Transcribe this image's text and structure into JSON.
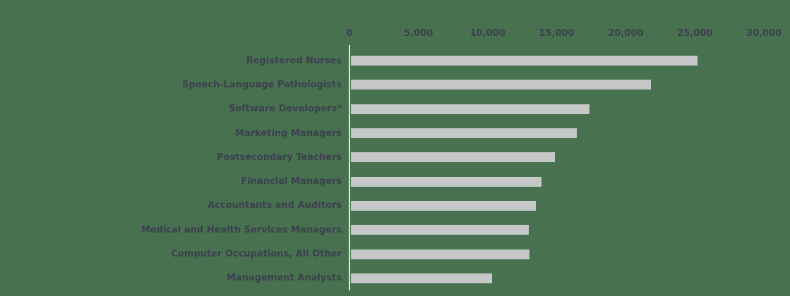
{
  "chart_data": {
    "type": "bar",
    "orientation": "horizontal",
    "title": "",
    "xlabel": "",
    "ylabel": "",
    "grid": false,
    "legend": false,
    "xlim": [
      0,
      30000
    ],
    "x_tick_labels": [
      "0",
      "5,000",
      "10,000",
      "15,000",
      "20,000",
      "25,000",
      "30,000"
    ],
    "categories": [
      "Registered Nurses",
      "Speech-Language Pathologists",
      "Software Developers*",
      "Marketing Managers",
      "Postsecondary Teachers",
      "Financial Managers",
      "Accountants and Auditors",
      "Medical and Health Services Managers",
      "Computer Occupations, All Other",
      "Management Analysts"
    ],
    "values": [
      25200,
      21800,
      17350,
      16400,
      14800,
      13850,
      13450,
      12900,
      12950,
      10250
    ],
    "colors": {
      "background": "#487150",
      "bar": "#c5c8c7",
      "text": "#3c414d",
      "axis_line": "#e4e6e4"
    }
  }
}
